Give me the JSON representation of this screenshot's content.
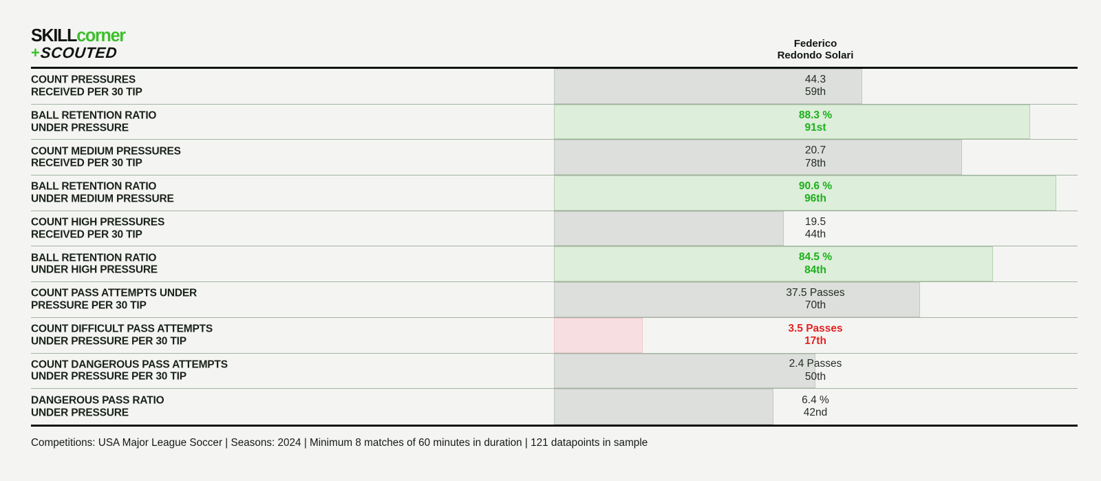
{
  "logo": {
    "skill": "SKILL",
    "corner": "corner",
    "plus": "+",
    "scouted": "SCOUTED"
  },
  "header": {
    "player_name_line1": "Federico",
    "player_name_line2": "Redondo Solari"
  },
  "rows": [
    {
      "label_line1": "COUNT PRESSURES",
      "label_line2": "RECEIVED PER 30 TIP",
      "value": "44.3",
      "percentile_label": "59th",
      "percentile": 59,
      "status": "neutral"
    },
    {
      "label_line1": "BALL RETENTION RATIO",
      "label_line2": "UNDER PRESSURE",
      "value": "88.3 %",
      "percentile_label": "91st",
      "percentile": 91,
      "status": "good"
    },
    {
      "label_line1": "COUNT MEDIUM PRESSURES",
      "label_line2": "RECEIVED PER 30 TIP",
      "value": "20.7",
      "percentile_label": "78th",
      "percentile": 78,
      "status": "neutral"
    },
    {
      "label_line1": "BALL RETENTION RATIO",
      "label_line2": "UNDER MEDIUM PRESSURE",
      "value": "90.6 %",
      "percentile_label": "96th",
      "percentile": 96,
      "status": "good"
    },
    {
      "label_line1": "COUNT HIGH PRESSURES",
      "label_line2": "RECEIVED PER 30 TIP",
      "value": "19.5",
      "percentile_label": "44th",
      "percentile": 44,
      "status": "neutral"
    },
    {
      "label_line1": "BALL RETENTION RATIO",
      "label_line2": "UNDER HIGH PRESSURE",
      "value": "84.5 %",
      "percentile_label": "84th",
      "percentile": 84,
      "status": "good"
    },
    {
      "label_line1": "COUNT PASS ATTEMPTS UNDER",
      "label_line2": "PRESSURE PER 30 TIP",
      "value": "37.5 Passes",
      "percentile_label": "70th",
      "percentile": 70,
      "status": "neutral"
    },
    {
      "label_line1": "COUNT DIFFICULT PASS ATTEMPTS",
      "label_line2": "UNDER PRESSURE PER 30 TIP",
      "value": "3.5 Passes",
      "percentile_label": "17th",
      "percentile": 17,
      "status": "bad"
    },
    {
      "label_line1": "COUNT DANGEROUS PASS ATTEMPTS",
      "label_line2": "UNDER PRESSURE PER 30 TIP",
      "value": "2.4 Passes",
      "percentile_label": "50th",
      "percentile": 50,
      "status": "neutral"
    },
    {
      "label_line1": "DANGEROUS PASS RATIO",
      "label_line2": "UNDER PRESSURE",
      "value": "6.4 %",
      "percentile_label": "42nd",
      "percentile": 42,
      "status": "neutral"
    }
  ],
  "footer": {
    "note": "Competitions: USA Major League Soccer | Seasons: 2024 | Minimum 8 matches of 60 minutes in duration | 121 datapoints in sample"
  },
  "colors": {
    "background": "#f4f5f3",
    "brand_green": "#3dbe2b",
    "bar_neutral_fill": "#dcdfdb",
    "bar_good_fill": "#ddeeda",
    "bar_bad_fill": "#f7dee0",
    "text_good": "#1bb11b",
    "text_bad": "#e32222",
    "text_neutral": "#252b25",
    "separator": "#a4b2a1",
    "rule": "#0d120d"
  },
  "chart_data": {
    "type": "bar",
    "orientation": "horizontal",
    "title": "Federico Redondo Solari",
    "categories": [
      "COUNT PRESSURES RECEIVED PER 30 TIP",
      "BALL RETENTION RATIO UNDER PRESSURE",
      "COUNT MEDIUM PRESSURES RECEIVED PER 30 TIP",
      "BALL RETENTION RATIO UNDER MEDIUM PRESSURE",
      "COUNT HIGH PRESSURES RECEIVED PER 30 TIP",
      "BALL RETENTION RATIO UNDER HIGH PRESSURE",
      "COUNT PASS ATTEMPTS UNDER PRESSURE PER 30 TIP",
      "COUNT DIFFICULT PASS ATTEMPTS UNDER PRESSURE PER 30 TIP",
      "COUNT DANGEROUS PASS ATTEMPTS UNDER PRESSURE PER 30 TIP",
      "DANGEROUS PASS RATIO UNDER PRESSURE"
    ],
    "series": [
      {
        "name": "Percentile rank",
        "values": [
          59,
          91,
          78,
          96,
          44,
          84,
          70,
          17,
          50,
          42
        ]
      },
      {
        "name": "Metric value label",
        "values": [
          "44.3",
          "88.3 %",
          "20.7",
          "90.6 %",
          "19.5",
          "84.5 %",
          "37.5 Passes",
          "3.5 Passes",
          "2.4 Passes",
          "6.4 %"
        ]
      },
      {
        "name": "Percentile label",
        "values": [
          "59th",
          "91st",
          "78th",
          "96th",
          "44th",
          "84th",
          "70th",
          "17th",
          "50th",
          "42nd"
        ]
      }
    ],
    "xlim": [
      0,
      100
    ],
    "grid": false,
    "legend": "none",
    "bar_color_rule": "green = strong percentile, red = weak percentile, gray = neutral",
    "footnote": "Competitions: USA Major League Soccer | Seasons: 2024 | Minimum 8 matches of 60 minutes in duration | 121 datapoints in sample"
  }
}
